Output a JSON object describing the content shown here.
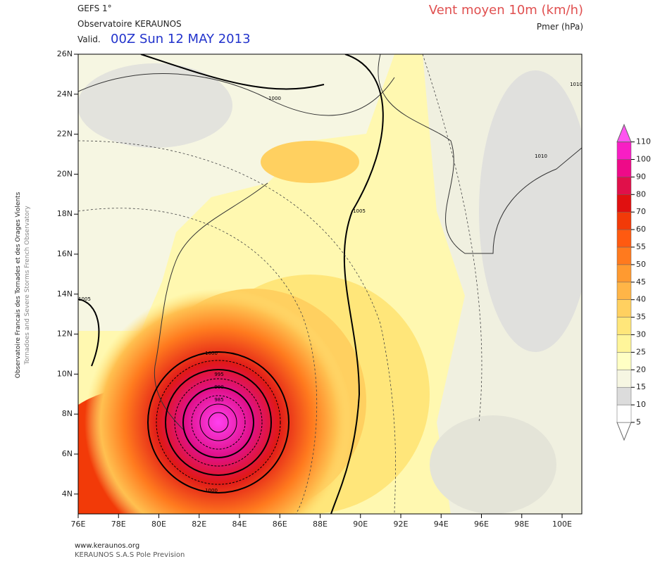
{
  "header": {
    "model": "GEFS 1°",
    "source": "Observatoire KERAUNOS",
    "valid_label": "Valid.",
    "valid_time": "00Z Sun 12 MAY 2013",
    "title": "Vent moyen 10m (km/h)",
    "subtitle": "Pmer (hPa)"
  },
  "side_text": [
    "Observatoire Francais des Tornades et des Orages Violents",
    "Tornadoes and Severe Storms French Observatory"
  ],
  "map": {
    "lat_labels": [
      "26N",
      "24N",
      "22N",
      "20N",
      "18N",
      "16N",
      "14N",
      "12N",
      "10N",
      "8N",
      "6N",
      "4N"
    ],
    "lon_labels": [
      "76E",
      "78E",
      "80E",
      "82E",
      "84E",
      "86E",
      "88E",
      "90E",
      "92E",
      "94E",
      "96E",
      "98E",
      "100E"
    ],
    "contour_labels": [
      "1000",
      "1010",
      "1005",
      "1010",
      "1005",
      "1000",
      "995",
      "990",
      "985",
      "1000"
    ]
  },
  "colorbar": {
    "levels": [
      5,
      10,
      15,
      20,
      25,
      30,
      35,
      40,
      45,
      50,
      55,
      60,
      70,
      80,
      90,
      100,
      110
    ],
    "colors": [
      "#ffffff",
      "#dcdcdc",
      "#f6f6e2",
      "#ffffc4",
      "#fff59a",
      "#ffe67a",
      "#ffd060",
      "#ffb547",
      "#ff9a30",
      "#ff7a1e",
      "#ff5a10",
      "#f23a08",
      "#e01010",
      "#e0104a",
      "#ee0a88",
      "#f81ec4",
      "#ff55f0"
    ]
  },
  "footer": [
    "www.keraunos.org",
    "KERAUNOS S.A.S Pole Prevision"
  ]
}
